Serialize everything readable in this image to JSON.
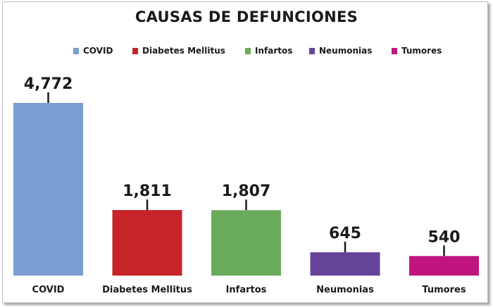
{
  "chart_data": {
    "type": "bar",
    "title": "CAUSAS DE DEFUNCIONES",
    "categories": [
      "COVID",
      "Diabetes Mellitus",
      "Infartos",
      "Neumonias",
      "Tumores"
    ],
    "values": [
      4772,
      1811,
      1807,
      645,
      540
    ],
    "value_labels": [
      "4,772",
      "1,811",
      "1,807",
      "645",
      "540"
    ],
    "colors": [
      "#7b9fd0",
      "#c62428",
      "#6aab5b",
      "#65449a",
      "#c0157e"
    ],
    "legend": {
      "placement": "top",
      "entries": [
        "COVID",
        "Diabetes Mellitus",
        "Infartos",
        "Neumonias",
        "Tumores"
      ]
    },
    "ylim": [
      0,
      4772
    ],
    "grid": false,
    "xlabel": "",
    "ylabel": ""
  }
}
